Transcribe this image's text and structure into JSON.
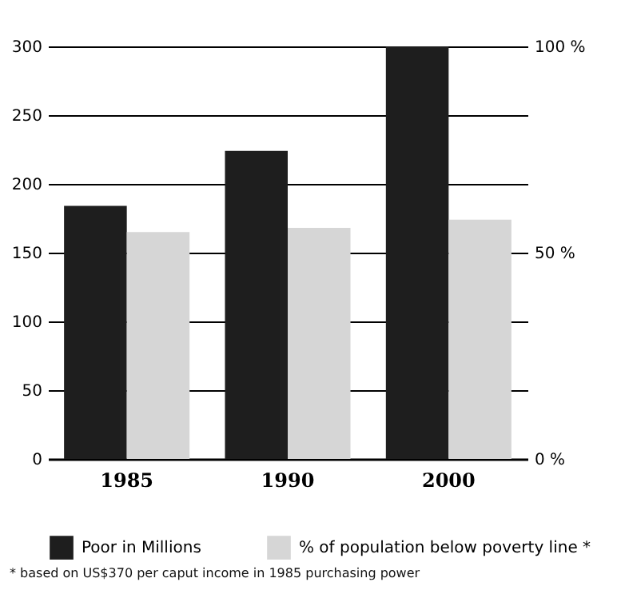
{
  "chart_data": {
    "type": "bar",
    "categories": [
      "1985",
      "1990",
      "2000"
    ],
    "series": [
      {
        "name": "Poor in Millions",
        "color": "#1e1e1e",
        "values": [
          184,
          224,
          300
        ]
      },
      {
        "name": "% of population below poverty line *",
        "color": "#d6d6d6",
        "values": [
          55,
          56,
          58
        ],
        "axis": "y2"
      }
    ],
    "ylim": [
      0,
      300
    ],
    "yticks": [
      0,
      50,
      100,
      150,
      200,
      250,
      300
    ],
    "y2lim": [
      0,
      100
    ],
    "y2ticks": [
      {
        "value": 0,
        "label": "0 %"
      },
      {
        "value": 50,
        "label": "50 %"
      },
      {
        "value": 100,
        "label": "100 %"
      }
    ],
    "grid": "y",
    "legend": "bottom",
    "annotations": [
      "* based on US$370 per caput income in 1985 purchasing power"
    ]
  }
}
